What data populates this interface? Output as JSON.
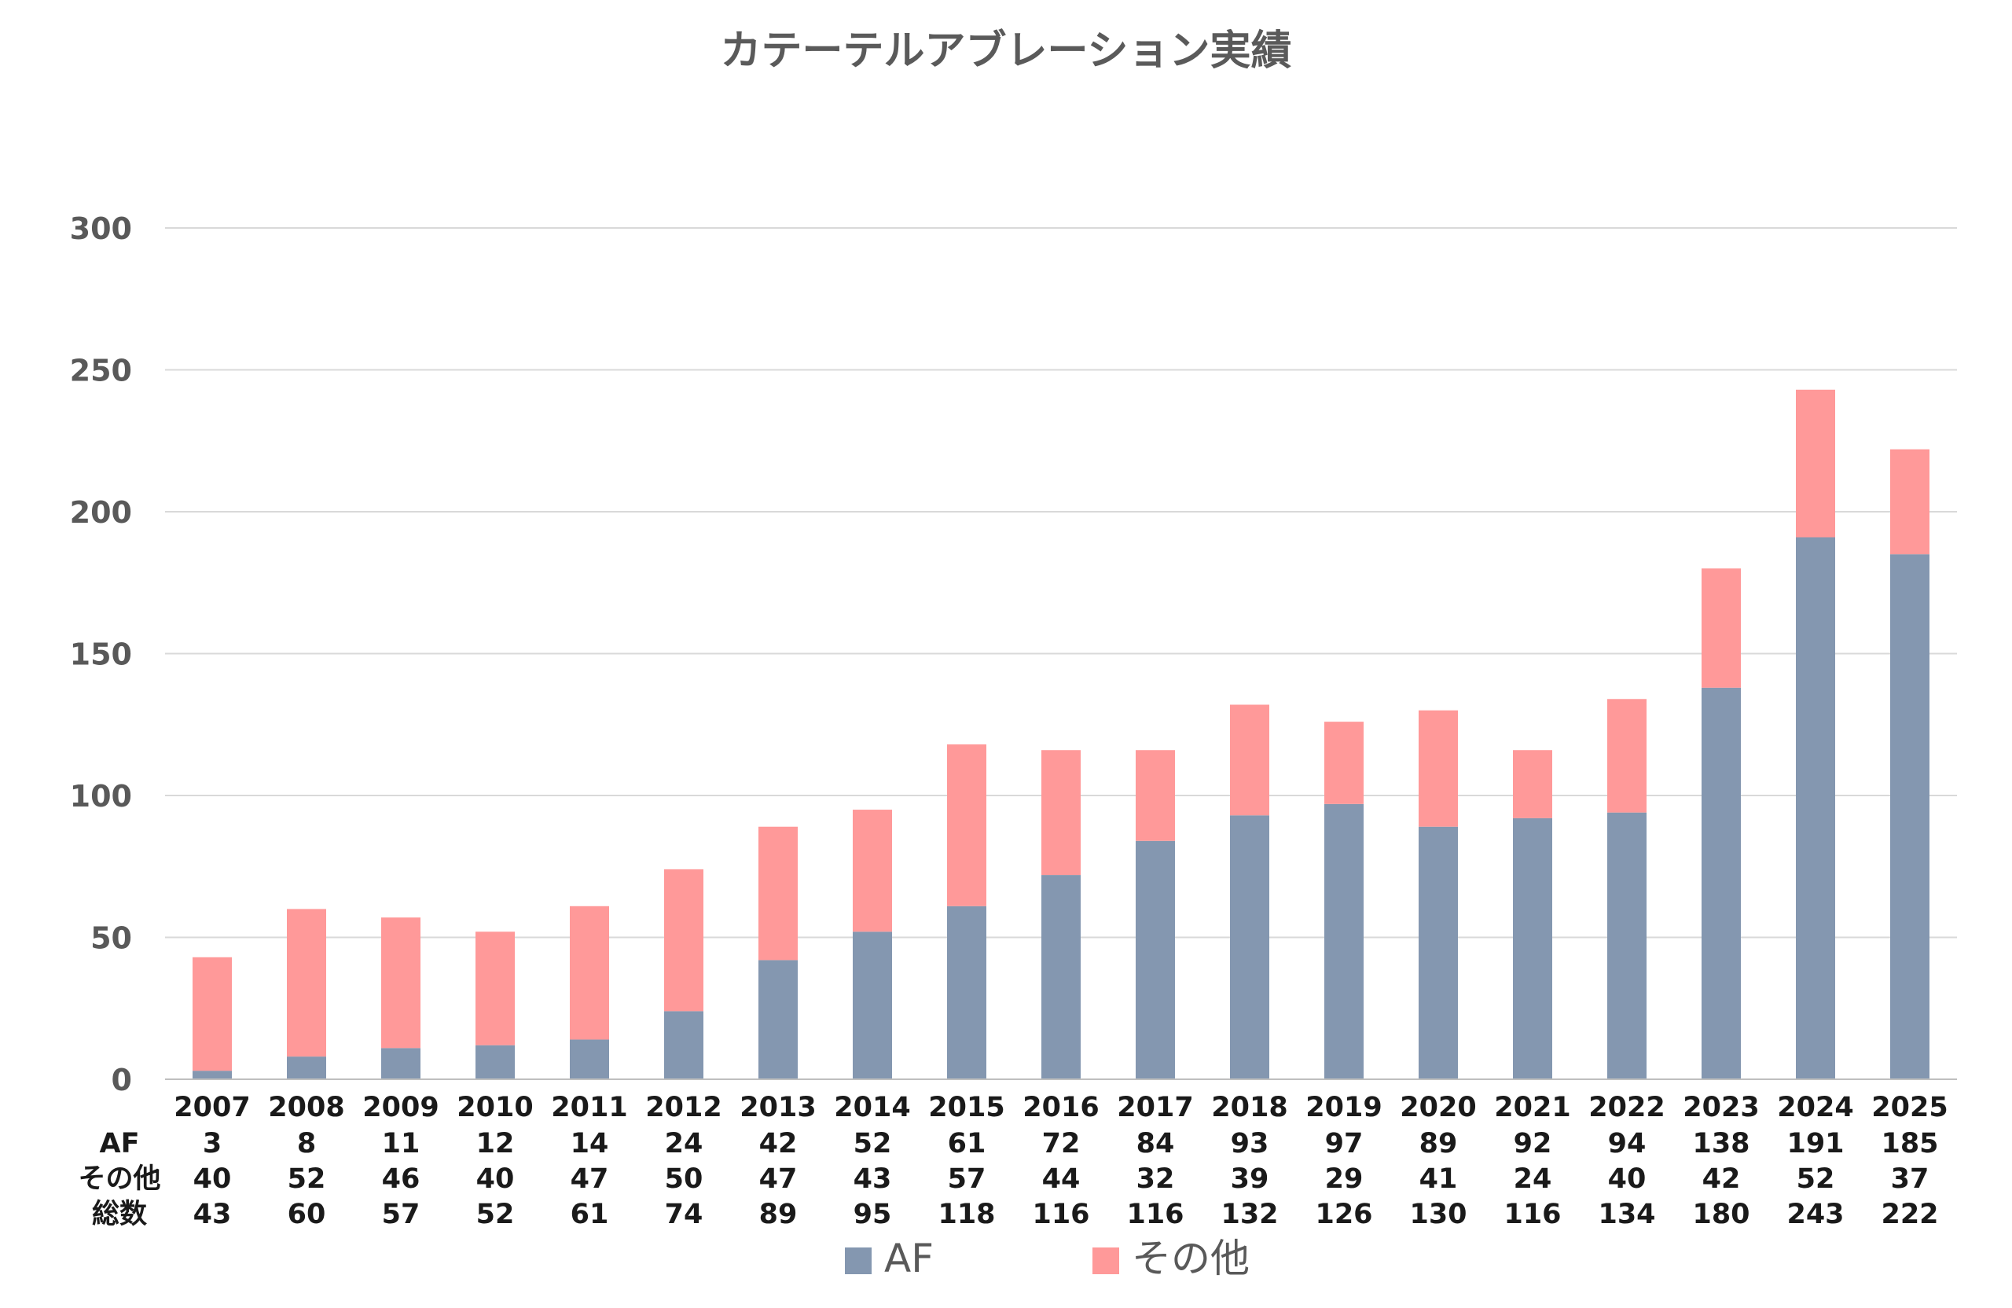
{
  "chart_data": {
    "type": "bar",
    "stacked": true,
    "title": "カテーテルアブレーション実績",
    "xlabel": "",
    "ylabel": "",
    "ylim": [
      0,
      300
    ],
    "yticks": [
      0,
      50,
      100,
      150,
      200,
      250,
      300
    ],
    "grid": true,
    "legend_position": "bottom",
    "categories": [
      "2007",
      "2008",
      "2009",
      "2010",
      "2011",
      "2012",
      "2013",
      "2014",
      "2015",
      "2016",
      "2017",
      "2018",
      "2019",
      "2020",
      "2021",
      "2022",
      "2023",
      "2024",
      "2025"
    ],
    "series": [
      {
        "name": "AF",
        "color": "#8497b0",
        "values": [
          3,
          8,
          11,
          12,
          14,
          24,
          42,
          52,
          61,
          72,
          84,
          93,
          97,
          89,
          92,
          94,
          138,
          191,
          185
        ]
      },
      {
        "name": "その他",
        "color": "#ff9999",
        "values": [
          40,
          52,
          46,
          40,
          47,
          50,
          47,
          43,
          57,
          44,
          32,
          39,
          29,
          41,
          24,
          40,
          42,
          52,
          37
        ]
      }
    ],
    "table": {
      "row_labels": [
        "AF",
        "その他",
        "総数"
      ],
      "total_label": "総数",
      "totals": [
        43,
        60,
        57,
        52,
        61,
        74,
        89,
        95,
        118,
        116,
        116,
        132,
        126,
        130,
        116,
        134,
        180,
        243,
        222
      ]
    }
  },
  "colors": {
    "gridline": "#d9d9d9",
    "axis": "#bfbfbf",
    "title": "#5a5a5a",
    "tick": "#595959",
    "table_text": "#1a1a1a"
  }
}
